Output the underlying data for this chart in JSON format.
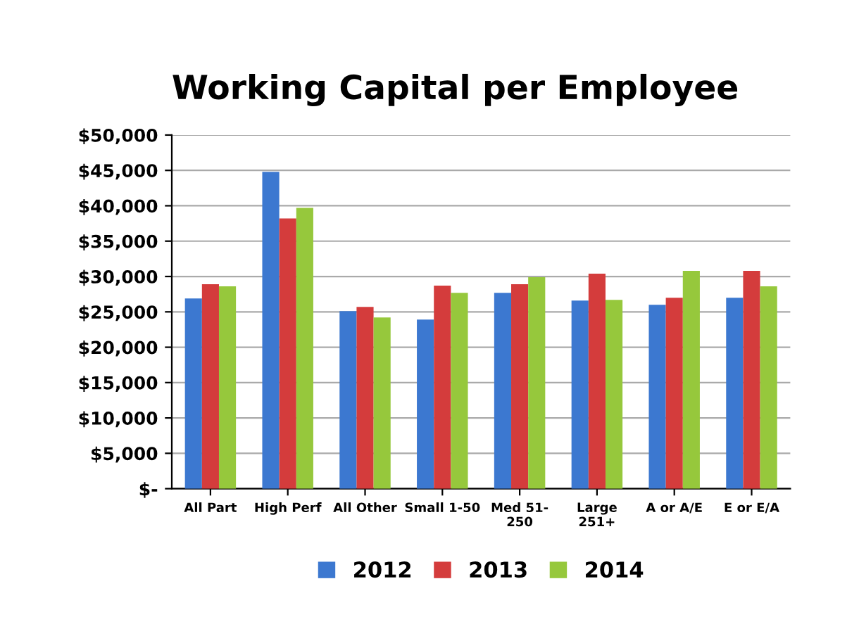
{
  "chart_data": {
    "type": "bar",
    "title": "Working Capital per Employee",
    "categories": [
      "All Part",
      "High Perf",
      "All Other",
      "Small 1-50",
      "Med 51-\n250",
      "Large\n251+",
      "A or A/E",
      "E or E/A"
    ],
    "series": [
      {
        "name": "2012",
        "color": "#3c78d0",
        "values": [
          26900,
          44800,
          25100,
          23900,
          27700,
          26600,
          26000,
          27000
        ]
      },
      {
        "name": "2013",
        "color": "#d43c3c",
        "values": [
          28900,
          38200,
          25700,
          28700,
          28900,
          30400,
          27000,
          30800
        ]
      },
      {
        "name": "2014",
        "color": "#96c83c",
        "values": [
          28600,
          39700,
          24200,
          27700,
          29900,
          26700,
          30800,
          28600
        ]
      }
    ],
    "ylim": [
      0,
      50000
    ],
    "yticks": [
      {
        "value": 0,
        "label": "$-"
      },
      {
        "value": 5000,
        "label": "$5,000"
      },
      {
        "value": 10000,
        "label": "$10,000"
      },
      {
        "value": 15000,
        "label": "$15,000"
      },
      {
        "value": 20000,
        "label": "$20,000"
      },
      {
        "value": 25000,
        "label": "$25,000"
      },
      {
        "value": 30000,
        "label": "$30,000"
      },
      {
        "value": 35000,
        "label": "$35,000"
      },
      {
        "value": 40000,
        "label": "$40,000"
      },
      {
        "value": 45000,
        "label": "$45,000"
      },
      {
        "value": 50000,
        "label": "$50,000"
      }
    ],
    "grid": "y",
    "legend": "bottom"
  }
}
